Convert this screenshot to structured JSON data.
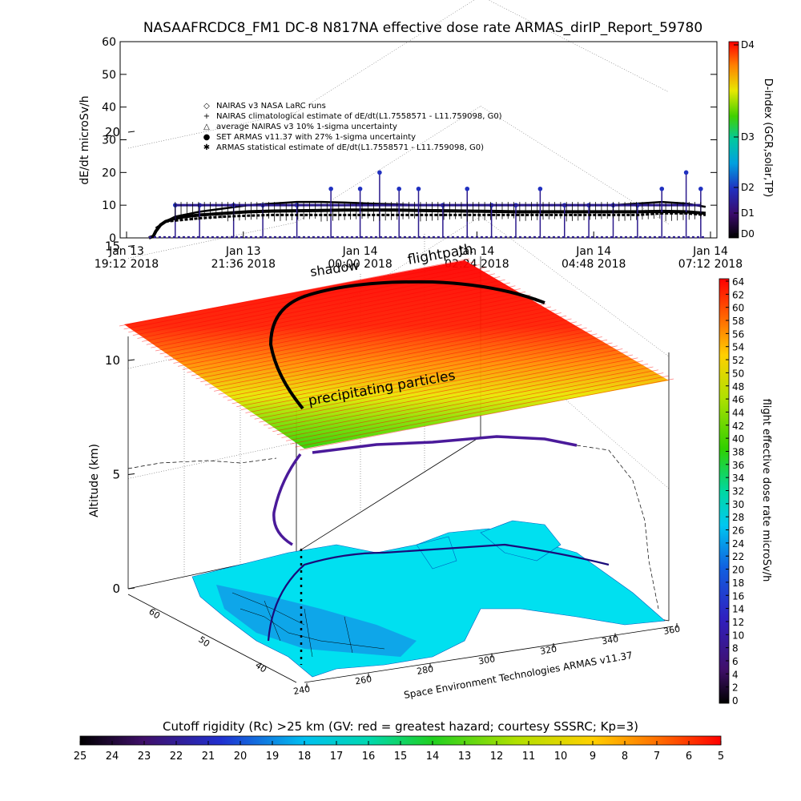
{
  "title": "NASAAFRCDC8_FM1 DC-8    N817NA effective dose rate ARMAS_dirIP_Report_59780",
  "colors": {
    "nairas": "#000000",
    "armas": "#2b1a8c",
    "flightpath": "#000000",
    "shadow": "#4a1a9a"
  },
  "timeseries": {
    "ylabel": "dE/dt microSv/h",
    "yticks": [
      "0",
      "10",
      "20",
      "30",
      "40",
      "50",
      "60"
    ],
    "xticks": [
      {
        "line1": "Jan 13",
        "line2": "19:12 2018"
      },
      {
        "line1": "Jan 13",
        "line2": "21:36 2018"
      },
      {
        "line1": "Jan 14",
        "line2": "00:00 2018"
      },
      {
        "line1": "Jan 14",
        "line2": "02:24 2018"
      },
      {
        "line1": "Jan 14",
        "line2": "04:48 2018"
      },
      {
        "line1": "Jan 14",
        "line2": "07:12 2018"
      }
    ],
    "legend": [
      {
        "symbol": "diamond",
        "text": "NAIRAS v3 NASA LaRC runs"
      },
      {
        "symbol": "plus",
        "text": "NAIRAS climatological estimate of dE/dt(L1.7558571 - L11.759098, G0)"
      },
      {
        "symbol": "triangle",
        "text": "average NAIRAS v3 10% 1-sigma uncertainty"
      },
      {
        "symbol": "dot",
        "text": "SET ARMAS v11.37 with 27% 1-sigma uncertainty"
      },
      {
        "symbol": "asterisk",
        "text": "ARMAS statistical estimate of dE/dt(L1.7558571 - L11.759098, G0)"
      }
    ],
    "dindex": {
      "label": "D-index (GCR,solar,TP)",
      "ticks": [
        "D4",
        "D3",
        "D2",
        "D1",
        "D0"
      ]
    }
  },
  "globe": {
    "label_flightpath": "flightpath",
    "label_shadow": "shadow",
    "label_particles": "precipitating particles",
    "zlabel": "Altitude (km)",
    "zticks": [
      "0",
      "5",
      "10",
      "15",
      "20"
    ],
    "lat_ticks": [
      "60",
      "50",
      "40"
    ],
    "lon_ticks": [
      "240",
      "260",
      "280",
      "300",
      "320",
      "340",
      "360"
    ],
    "credit": "Space Environment Technologies ARMAS v11.37",
    "dose_bar": {
      "label": "flight effective dose rate microSv/h",
      "ticks": [
        "0",
        "2",
        "4",
        "6",
        "8",
        "10",
        "12",
        "14",
        "16",
        "18",
        "20",
        "22",
        "24",
        "26",
        "28",
        "30",
        "32",
        "34",
        "36",
        "38",
        "40",
        "42",
        "44",
        "46",
        "48",
        "50",
        "52",
        "54",
        "56",
        "58",
        "60",
        "62",
        "64"
      ]
    }
  },
  "rc_bar": {
    "label": "Cutoff rigidity (Rc) >25 km (GV: red = greatest hazard; courtesy SSSRC; Kp=3)",
    "ticks": [
      "25",
      "24",
      "23",
      "22",
      "21",
      "20",
      "19",
      "18",
      "17",
      "16",
      "15",
      "14",
      "13",
      "12",
      "11",
      "10",
      "9",
      "8",
      "7",
      "6",
      "5"
    ]
  },
  "chart_data": [
    {
      "type": "scatter",
      "title": "NASAAFRCDC8_FM1 DC-8    N817NA effective dose rate ARMAS_dirIP_Report_59780",
      "ylabel": "dE/dt microSv/h",
      "ylim": [
        0,
        60
      ],
      "series": [
        {
          "name": "NAIRAS climatological estimate of dE/dt(L1.7558571 - L11.759098, G0)",
          "x": [
            0.46,
            0.55,
            0.6,
            0.7,
            0.8,
            1.0,
            1.2,
            1.5,
            2.0,
            2.5,
            3.0,
            3.5,
            4.0,
            4.5,
            5.0,
            5.5,
            6.0,
            6.5,
            7.0,
            7.5,
            8.0,
            8.5,
            9.0,
            9.5,
            10.0,
            10.5,
            11.0,
            11.5,
            11.9
          ],
          "y": [
            0,
            0.5,
            2,
            4,
            5,
            6,
            6.5,
            7,
            7.5,
            8,
            8.2,
            8.3,
            8.4,
            8.5,
            8.5,
            8.5,
            8.4,
            8.3,
            8.2,
            8.1,
            8.0,
            8.0,
            8.0,
            8.0,
            8.0,
            8.0,
            8.1,
            8.0,
            7.5
          ]
        },
        {
          "name": "NAIRAS v3 NASA LaRC runs",
          "x": [
            0.6,
            0.8,
            1.0,
            1.5,
            2.0,
            2.5,
            3.0,
            3.5,
            4.0,
            4.5,
            5.0,
            5.5,
            6.0,
            6.5,
            7.0,
            7.5,
            8.0,
            8.5,
            9.0,
            9.5,
            10.0,
            10.5,
            11.0,
            11.5,
            11.9
          ],
          "y": [
            3,
            5,
            6.5,
            8,
            9,
            10,
            10.5,
            11,
            11,
            10.8,
            10.5,
            10.3,
            10,
            10,
            10,
            10,
            10,
            10,
            10,
            10,
            10,
            10.5,
            11,
            10.5,
            9.5
          ]
        },
        {
          "name": "SET ARMAS v11.37 with 27% 1-sigma uncertainty",
          "x": [
            1.0,
            1.5,
            2.2,
            2.8,
            3.5,
            4.2,
            4.8,
            5.2,
            5.6,
            6.0,
            6.5,
            7.0,
            7.5,
            8.0,
            8.5,
            9.0,
            9.5,
            10.0,
            10.5,
            11.0,
            11.5,
            11.8
          ],
          "y": [
            10,
            10,
            10,
            10,
            10,
            15,
            15,
            20,
            15,
            15,
            10,
            15,
            10,
            10,
            15,
            10,
            10,
            10,
            10,
            15,
            20,
            15
          ]
        },
        {
          "name": "ARMAS statistical estimate of dE/dt(L1.7558571 - L11.759098, G0)",
          "x": [
            0.8,
            1.5,
            2.0,
            2.5,
            3.0,
            3.5,
            4.0,
            4.5,
            5.0,
            5.5,
            6.0,
            6.5,
            7.0,
            7.5,
            8.0,
            8.5,
            9.0,
            9.5,
            10.0,
            10.5,
            11.0,
            11.5,
            11.9
          ],
          "y": [
            5,
            6,
            6.5,
            6.8,
            7,
            7,
            7,
            7,
            7,
            7,
            7,
            7,
            7,
            7,
            7,
            7,
            7,
            7,
            7,
            7,
            7.5,
            7.5,
            7
          ]
        }
      ],
      "x_hours_since_first_tick": true
    }
  ]
}
